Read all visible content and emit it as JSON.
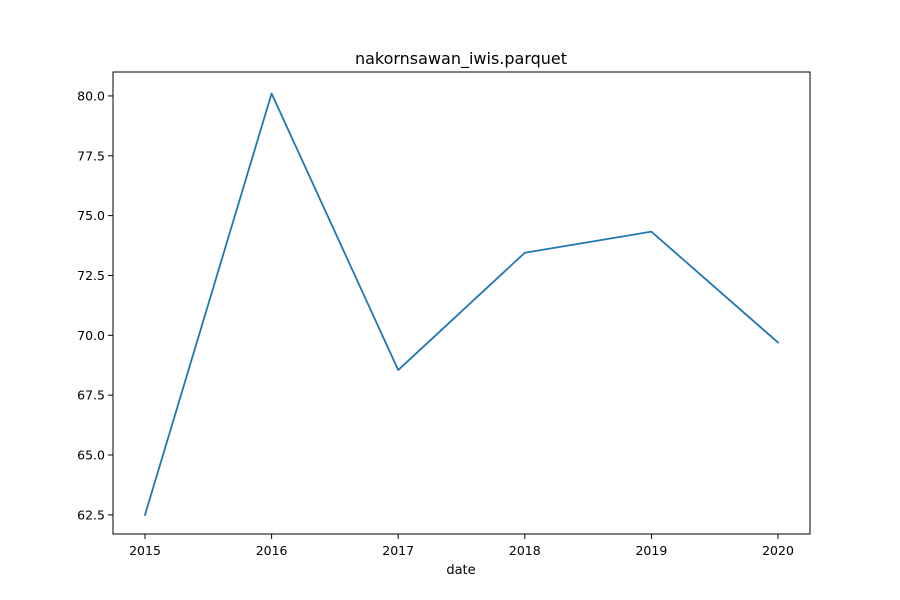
{
  "chart_data": {
    "type": "line",
    "title": "nakornsawan_iwis.parquet",
    "xlabel": "date",
    "ylabel": "",
    "categories": [
      "2015",
      "2016",
      "2017",
      "2018",
      "2019",
      "2020"
    ],
    "series": [
      {
        "values": [
          62.5,
          80.1,
          68.55,
          73.45,
          74.33,
          69.7
        ],
        "color": "#1f77b4"
      }
    ],
    "ylim": [
      61.7,
      81.0
    ],
    "yticks": [
      "62.5",
      "65.0",
      "67.5",
      "70.0",
      "72.5",
      "75.0",
      "77.5",
      "80.0"
    ],
    "grid": false,
    "legend": "none"
  }
}
